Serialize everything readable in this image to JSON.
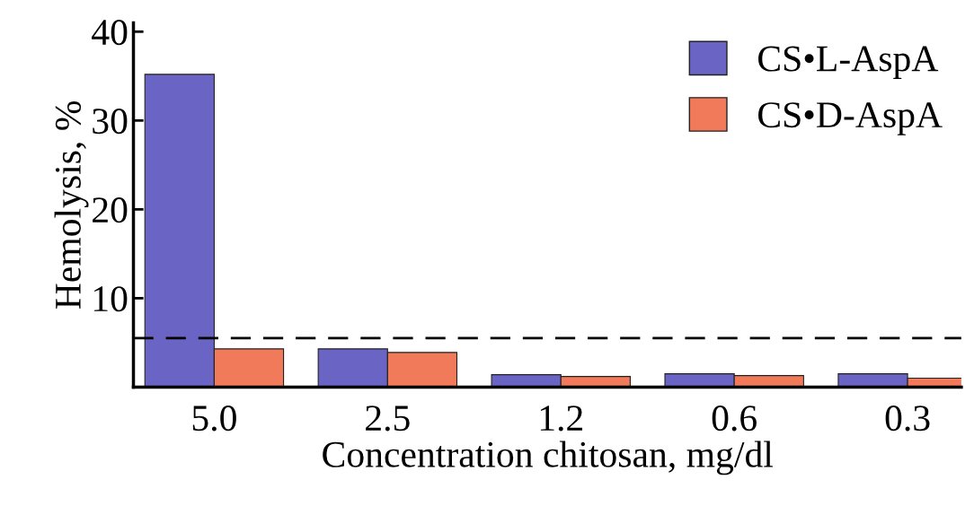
{
  "chart_data": {
    "type": "bar",
    "xlabel": "Concentration chitosan, mg/dl",
    "ylabel": "Hemolysis, %",
    "categories": [
      "5.0",
      "2.5",
      "1.2",
      "0.6",
      "0.3"
    ],
    "series": [
      {
        "name": "CS•L-AspA",
        "color": "#6a64c4",
        "values": [
          35.2,
          4.3,
          1.4,
          1.5,
          1.5
        ]
      },
      {
        "name": "CS•D-AspA",
        "color": "#f07a5a",
        "values": [
          4.3,
          3.9,
          1.2,
          1.3,
          1.0
        ]
      }
    ],
    "ylim": [
      0,
      41
    ],
    "yticks": [
      10,
      20,
      30,
      40
    ],
    "grid": false,
    "legend": "top right",
    "ref_lines": [
      {
        "axis": "y",
        "value": 5.5,
        "label": null,
        "color": "#000000",
        "line_style": "dashed"
      }
    ]
  }
}
